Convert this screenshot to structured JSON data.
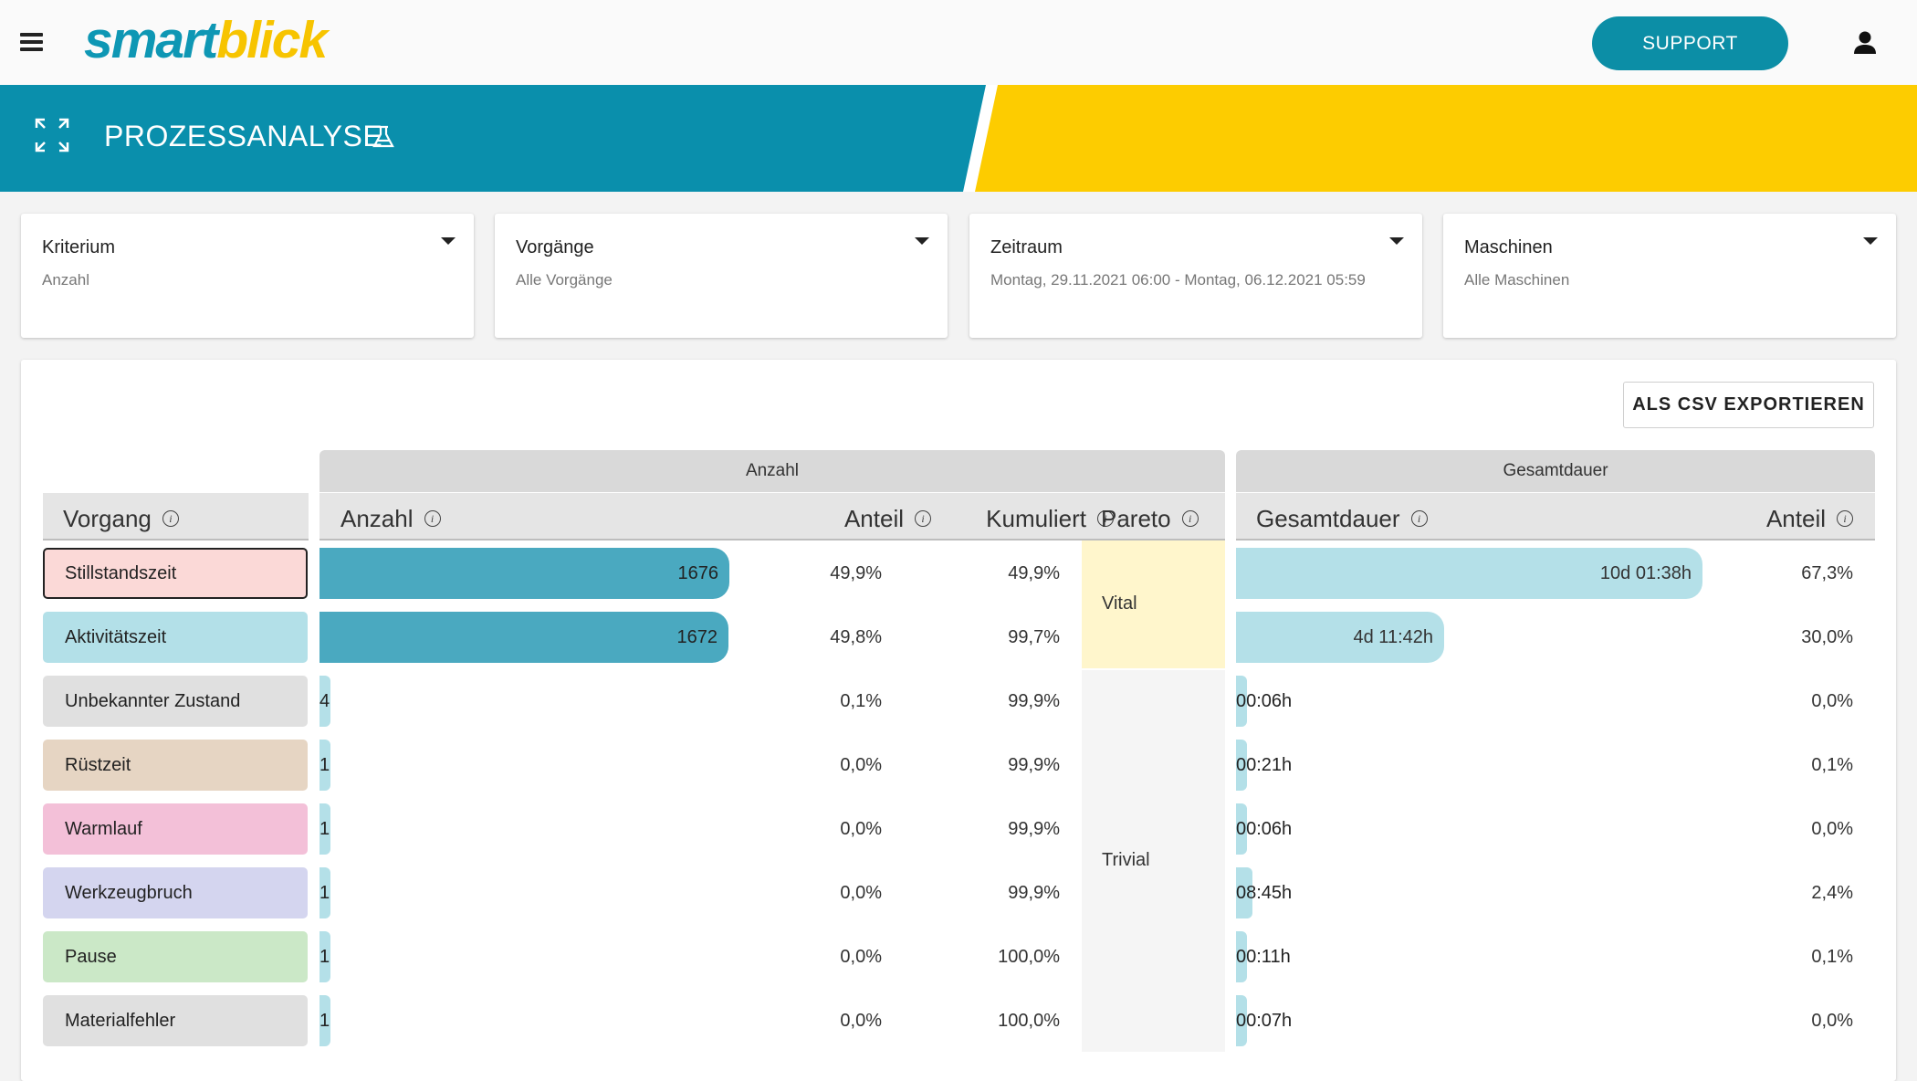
{
  "header": {
    "logo_part1": "smart",
    "logo_part2": "blick",
    "support_label": "SUPPORT"
  },
  "banner": {
    "title": "PROZESSANALYSE",
    "colors": {
      "blue": "#0a8fac",
      "yellow": "#fdcc00"
    }
  },
  "filters": [
    {
      "label": "Kriterium",
      "value": "Anzahl"
    },
    {
      "label": "Vorgänge",
      "value": "Alle Vorgänge"
    },
    {
      "label": "Zeitraum",
      "value": "Montag, 29.11.2021 06:00 - Montag, 06.12.2021 05:59"
    },
    {
      "label": "Maschinen",
      "value": "Alle Maschinen"
    }
  ],
  "export_label": "ALS CSV EXPORTIEREN",
  "table": {
    "group_count": "Anzahl",
    "group_duration": "Gesamtdauer",
    "col_vorgang": "Vorgang",
    "col_anzahl": "Anzahl",
    "col_anteil": "Anteil",
    "col_kumuliert": "Kumuliert",
    "col_pareto": "Pareto",
    "col_gesamtdauer": "Gesamtdauer",
    "col_dauer_anteil": "Anteil",
    "pareto_vital": "Vital",
    "pareto_trivial": "Trivial",
    "rows": [
      {
        "name": "Stillstandszeit",
        "color": "#fbd9d7",
        "count": 1676,
        "count_label": "1676",
        "share": "49,9%",
        "cumulative": "49,9%",
        "duration": "10d 01:38h",
        "duration_fraction": 0.673,
        "duration_share": "67,3%"
      },
      {
        "name": "Aktivitätszeit",
        "color": "#b3e0e8",
        "count": 1672,
        "count_label": "1672",
        "share": "49,8%",
        "cumulative": "99,7%",
        "duration": "4d 11:42h",
        "duration_fraction": 0.3,
        "duration_share": "30,0%"
      },
      {
        "name": "Unbekannter Zustand",
        "color": "#e0e0e0",
        "count": 4,
        "count_label": "4",
        "share": "0,1%",
        "cumulative": "99,9%",
        "duration": "00:06h",
        "duration_fraction": 0.0,
        "duration_share": "0,0%"
      },
      {
        "name": "Rüstzeit",
        "color": "#e6d5c3",
        "count": 1,
        "count_label": "1",
        "share": "0,0%",
        "cumulative": "99,9%",
        "duration": "00:21h",
        "duration_fraction": 0.001,
        "duration_share": "0,1%"
      },
      {
        "name": "Warmlauf",
        "color": "#f3c0d8",
        "count": 1,
        "count_label": "1",
        "share": "0,0%",
        "cumulative": "99,9%",
        "duration": "00:06h",
        "duration_fraction": 0.0,
        "duration_share": "0,0%"
      },
      {
        "name": "Werkzeugbruch",
        "color": "#d4d5ef",
        "count": 1,
        "count_label": "1",
        "share": "0,0%",
        "cumulative": "99,9%",
        "duration": "08:45h",
        "duration_fraction": 0.024,
        "duration_share": "2,4%"
      },
      {
        "name": "Pause",
        "color": "#cbe8c7",
        "count": 1,
        "count_label": "1",
        "share": "0,0%",
        "cumulative": "100,0%",
        "duration": "00:11h",
        "duration_fraction": 0.001,
        "duration_share": "0,1%"
      },
      {
        "name": "Materialfehler",
        "color": "#e0e0e0",
        "count": 1,
        "count_label": "1",
        "share": "0,0%",
        "cumulative": "100,0%",
        "duration": "00:07h",
        "duration_fraction": 0.0,
        "duration_share": "0,0%"
      }
    ]
  }
}
